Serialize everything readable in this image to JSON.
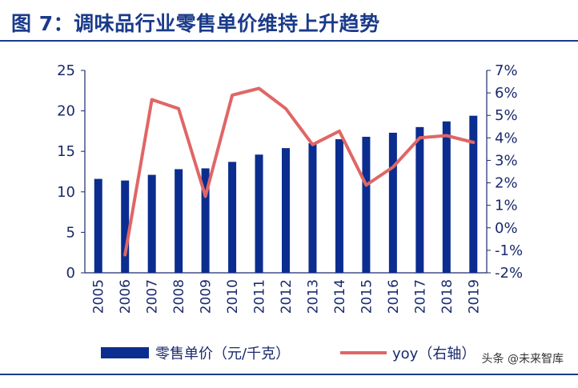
{
  "title": "图 7：调味品行业零售单价维持上升趋势",
  "watermark": "头条 @未来智库",
  "colors": {
    "bar": "#0b2d8f",
    "line": "#e06666",
    "axis": "#1a2a6c",
    "title": "#1a3a8a"
  },
  "chart_data": {
    "type": "bar+line",
    "categories": [
      "2005",
      "2006",
      "2007",
      "2008",
      "2009",
      "2010",
      "2011",
      "2012",
      "2013",
      "2014",
      "2015",
      "2016",
      "2017",
      "2018",
      "2019"
    ],
    "series": [
      {
        "name": "零售单价（元/千克）",
        "type": "bar",
        "axis": "left",
        "values": [
          11.6,
          11.4,
          12.1,
          12.8,
          12.9,
          13.7,
          14.6,
          15.4,
          16.0,
          16.5,
          16.8,
          17.3,
          18.0,
          18.7,
          19.4
        ]
      },
      {
        "name": "yoy（右轴）",
        "type": "line",
        "axis": "right",
        "values": [
          null,
          -1.2,
          5.7,
          5.3,
          1.4,
          5.9,
          6.2,
          5.3,
          3.7,
          4.3,
          1.9,
          2.7,
          4.0,
          4.1,
          3.8
        ]
      }
    ],
    "ylim_left": [
      0,
      25
    ],
    "yticks_left": [
      "0",
      "5",
      "10",
      "15",
      "20",
      "25"
    ],
    "ylim_right": [
      -2,
      7
    ],
    "yticks_right": [
      "-2%",
      "-1%",
      "0%",
      "1%",
      "2%",
      "3%",
      "4%",
      "5%",
      "6%",
      "7%"
    ],
    "legend": [
      "零售单价（元/千克）",
      "yoy（右轴）"
    ],
    "legend_position": "bottom",
    "grid": false
  }
}
